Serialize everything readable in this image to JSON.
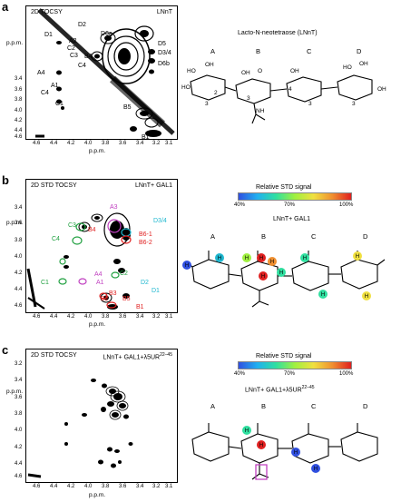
{
  "panels": [
    {
      "letter": "a",
      "title": "2D TOCSY",
      "sample": "LNnT",
      "x_ticks": [
        "4.6",
        "4.4",
        "4.2",
        "4.0",
        "3.8",
        "3.6",
        "3.4",
        "3.2",
        "3.1"
      ],
      "y_ticks": [
        "3.4",
        "3.6",
        "3.8",
        "4.0",
        "4.2",
        "4.4",
        "4.6"
      ],
      "axis_unit": "p.p.m.",
      "labels": [
        "D2",
        "D1",
        "D6a",
        "A2",
        "C2",
        "C3",
        "D5",
        "D3/4",
        "D6b",
        "B4",
        "C4",
        "A4",
        "A1",
        "C4",
        "C1",
        "B5",
        "B1"
      ],
      "molecule_name": "Lacto-N-neotetraose (LNnT)",
      "rings": [
        "A",
        "B",
        "C",
        "D"
      ]
    },
    {
      "letter": "b",
      "title": "2D STD TOCSY",
      "sample": "LNnT+ GAL1",
      "x_ticks": [
        "4.6",
        "4.4",
        "4.2",
        "4.0",
        "3.8",
        "3.6",
        "3.4",
        "3.2",
        "3.1"
      ],
      "y_ticks": [
        "3.4",
        "3.6",
        "3.8",
        "4.0",
        "4.2",
        "4.4",
        "4.6"
      ],
      "axis_unit": "p.p.m.",
      "labels": [
        "A3",
        "C3",
        "D3/4",
        "B4",
        "B6-1",
        "C4",
        "B6-2",
        "A4",
        "C2",
        "D2",
        "C1",
        "A1",
        "D1",
        "B2",
        "B3",
        "B5",
        "B1"
      ],
      "scale_title": "Relative STD signal",
      "scale_ticks": [
        "40%",
        "70%",
        "100%"
      ],
      "molecule_name": "LNnT+ GAL1",
      "rings": [
        "A",
        "B",
        "C",
        "D"
      ],
      "atom_marks": [
        "H",
        "H",
        "H",
        "H",
        "H",
        "H",
        "H",
        "H",
        "H",
        "H",
        "H"
      ]
    },
    {
      "letter": "c",
      "title": "2D STD TOCSY",
      "sample": "LNnT+ GAL1+λ5UR",
      "sample_sup": "22–45",
      "x_ticks": [
        "4.6",
        "4.4",
        "4.2",
        "4.0",
        "3.8",
        "3.6",
        "3.4",
        "3.2",
        "3.1"
      ],
      "y_ticks": [
        "3.2",
        "3.4",
        "3.6",
        "3.8",
        "4.0",
        "4.2",
        "4.4",
        "4.6"
      ],
      "axis_unit": "p.p.m.",
      "scale_title": "Relative STD signal",
      "scale_ticks": [
        "40%",
        "70%",
        "100%"
      ],
      "molecule_name": "LNnT+ GAL1+λ5UR",
      "molecule_sup": "22–45",
      "rings": [
        "A",
        "B",
        "C",
        "D"
      ],
      "atom_marks": [
        "H",
        "H",
        "H",
        "H"
      ]
    }
  ],
  "colors": {
    "red": "#e02020",
    "magenta": "#c040c0",
    "green": "#20a040",
    "cyan": "#20b8d0",
    "blue": "#3050e0",
    "yellow": "#f0e040"
  }
}
